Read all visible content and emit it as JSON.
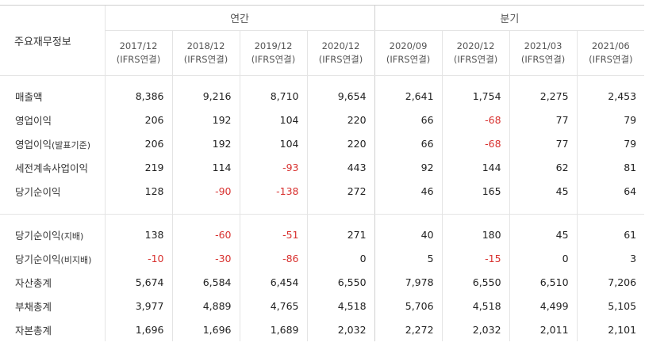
{
  "header": {
    "corner_label": "주요재무정보",
    "group_annual": "연간",
    "group_quarter": "분기",
    "periods": [
      {
        "date": "2017/12",
        "basis": "(IFRS연결)"
      },
      {
        "date": "2018/12",
        "basis": "(IFRS연결)"
      },
      {
        "date": "2019/12",
        "basis": "(IFRS연결)"
      },
      {
        "date": "2020/12",
        "basis": "(IFRS연결)"
      },
      {
        "date": "2020/09",
        "basis": "(IFRS연결)"
      },
      {
        "date": "2020/12",
        "basis": "(IFRS연결)"
      },
      {
        "date": "2021/03",
        "basis": "(IFRS연결)"
      },
      {
        "date": "2021/06",
        "basis": "(IFRS연결)"
      }
    ]
  },
  "section1": [
    {
      "label": "매출액",
      "label_sub": "",
      "values": [
        "8,386",
        "9,216",
        "8,710",
        "9,654",
        "2,641",
        "1,754",
        "2,275",
        "2,453"
      ]
    },
    {
      "label": "영업이익",
      "label_sub": "",
      "values": [
        "206",
        "192",
        "104",
        "220",
        "66",
        "-68",
        "77",
        "79"
      ]
    },
    {
      "label": "영업이익",
      "label_sub": "(발표기준)",
      "values": [
        "206",
        "192",
        "104",
        "220",
        "66",
        "-68",
        "77",
        "79"
      ]
    },
    {
      "label": "세전계속사업이익",
      "label_sub": "",
      "values": [
        "219",
        "114",
        "-93",
        "443",
        "92",
        "144",
        "62",
        "81"
      ]
    },
    {
      "label": "당기순이익",
      "label_sub": "",
      "values": [
        "128",
        "-90",
        "-138",
        "272",
        "46",
        "165",
        "45",
        "64"
      ]
    }
  ],
  "section2": [
    {
      "label": "당기순이익",
      "label_sub": "(지배)",
      "values": [
        "138",
        "-60",
        "-51",
        "271",
        "40",
        "180",
        "45",
        "61"
      ]
    },
    {
      "label": "당기순이익",
      "label_sub": "(비지배)",
      "values": [
        "-10",
        "-30",
        "-86",
        "0",
        "5",
        "-15",
        "0",
        "3"
      ]
    },
    {
      "label": "자산총계",
      "label_sub": "",
      "values": [
        "5,674",
        "6,584",
        "6,454",
        "6,550",
        "7,978",
        "6,550",
        "6,510",
        "7,206"
      ]
    },
    {
      "label": "부채총계",
      "label_sub": "",
      "values": [
        "3,977",
        "4,889",
        "4,765",
        "4,518",
        "5,706",
        "4,518",
        "4,499",
        "5,105"
      ]
    },
    {
      "label": "자본총계",
      "label_sub": "",
      "values": [
        "1,696",
        "1,696",
        "1,689",
        "2,032",
        "2,272",
        "2,032",
        "2,011",
        "2,101"
      ]
    }
  ],
  "colors": {
    "negative": "#d8312f",
    "border": "#e4e4e4"
  }
}
